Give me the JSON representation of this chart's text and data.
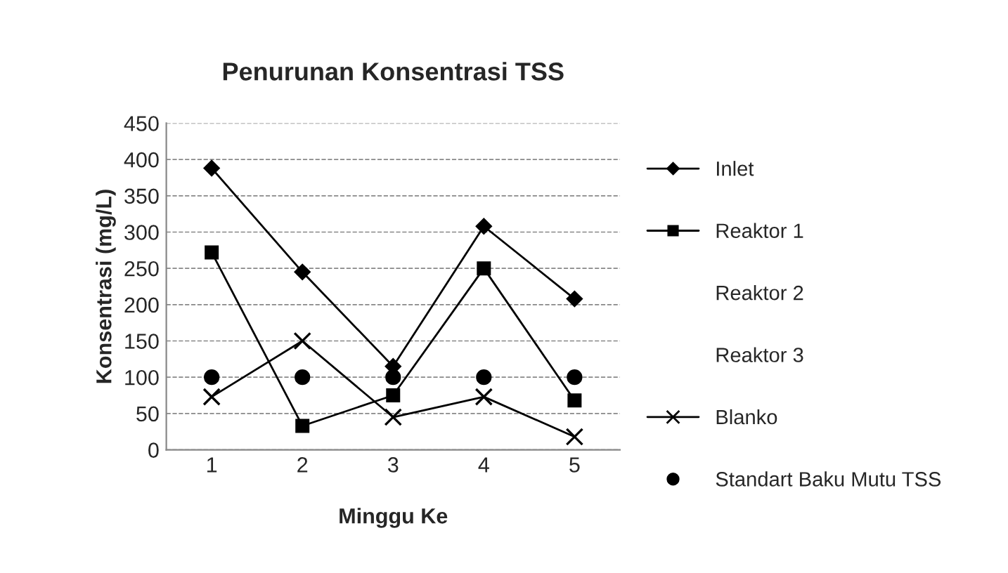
{
  "chart_data": {
    "type": "line",
    "title": "Penurunan Konsentrasi TSS",
    "xlabel": "Minggu Ke",
    "ylabel": "Konsentrasi (mg/L)",
    "categories": [
      "1",
      "2",
      "3",
      "4",
      "5"
    ],
    "ylim": [
      0,
      450
    ],
    "yticks": [
      0,
      50,
      100,
      150,
      200,
      250,
      300,
      350,
      400,
      450
    ],
    "grid": "y",
    "legend": "right",
    "series": [
      {
        "name": "Inlet",
        "color": "#000000",
        "marker": "diamond",
        "values": [
          388,
          245,
          115,
          308,
          208
        ]
      },
      {
        "name": "Reaktor 1",
        "color": "#000000",
        "marker": "square",
        "values": [
          272,
          33,
          75,
          250,
          68
        ]
      },
      {
        "name": "Reaktor 2",
        "marker": "none",
        "values": [
          null,
          null,
          null,
          null,
          null
        ]
      },
      {
        "name": "Reaktor 3",
        "marker": "none",
        "values": [
          null,
          null,
          null,
          null,
          null
        ]
      },
      {
        "name": "Blanko",
        "color": "#000000",
        "marker": "cross",
        "values": [
          73,
          150,
          45,
          73,
          18
        ]
      },
      {
        "name": "Standart Baku Mutu TSS",
        "type": "scatter",
        "color": "#000000",
        "marker": "circle",
        "values": [
          100,
          100,
          100,
          100,
          100
        ]
      }
    ]
  }
}
